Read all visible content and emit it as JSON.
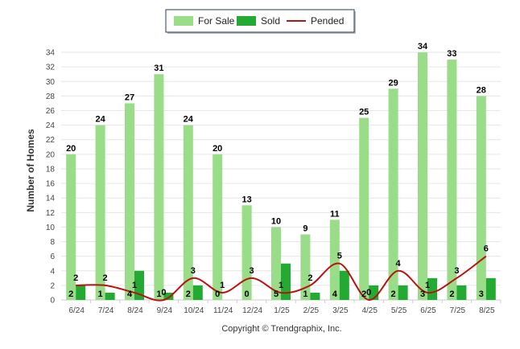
{
  "chart_data": {
    "type": "bar",
    "categories": [
      "6/24",
      "7/24",
      "8/24",
      "9/24",
      "10/24",
      "11/24",
      "12/24",
      "1/25",
      "2/25",
      "3/25",
      "4/25",
      "5/25",
      "6/25",
      "7/25",
      "8/25"
    ],
    "series": [
      {
        "name": "For Sale",
        "type": "bar",
        "color": "#99dd88",
        "values": [
          20,
          24,
          27,
          31,
          24,
          20,
          13,
          10,
          9,
          11,
          25,
          29,
          34,
          33,
          28
        ]
      },
      {
        "name": "Sold",
        "type": "bar",
        "color": "#22aa33",
        "values": [
          2,
          1,
          4,
          1,
          2,
          0,
          0,
          5,
          1,
          4,
          2,
          2,
          3,
          2,
          3
        ]
      },
      {
        "name": "Pended",
        "type": "line",
        "color": "#bb1111",
        "values": [
          2,
          2,
          1,
          0,
          3,
          1,
          3,
          1,
          2,
          5,
          0,
          4,
          1,
          3,
          6
        ]
      }
    ],
    "ylabel": "Number of Homes",
    "xlabel": "",
    "ylim": [
      0,
      35
    ],
    "yticks": [
      0,
      2,
      4,
      6,
      8,
      10,
      12,
      14,
      16,
      18,
      20,
      22,
      24,
      26,
      28,
      30,
      32,
      34
    ],
    "grid": true,
    "legend_position": "top-center",
    "credit": "Copyright © Trendgraphix, Inc."
  }
}
